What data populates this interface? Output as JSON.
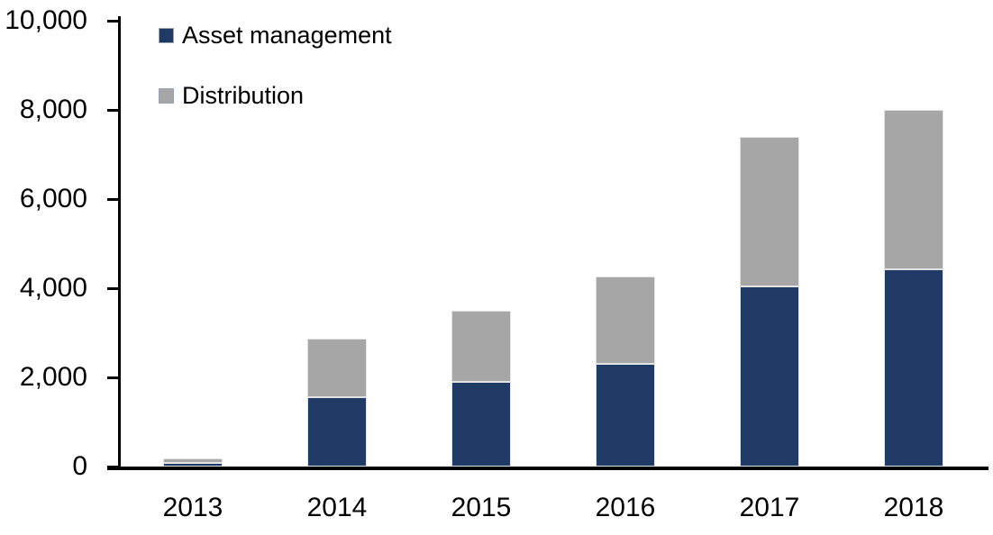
{
  "chart_data": {
    "type": "bar",
    "stacked": true,
    "title": "",
    "xlabel": "",
    "ylabel": "",
    "categories": [
      "2013",
      "2014",
      "2015",
      "2016",
      "2017",
      "2018"
    ],
    "series": [
      {
        "name": "Asset management",
        "color": "#1f3a64",
        "values": [
          90,
          1550,
          1900,
          2300,
          4050,
          4430
        ]
      },
      {
        "name": "Distribution",
        "color": "#a6a6a6",
        "values": [
          110,
          1320,
          1600,
          1950,
          3350,
          3570
        ]
      }
    ],
    "totals": [
      200,
      2870,
      3500,
      4250,
      7400,
      8000
    ],
    "ylim": [
      0,
      10000
    ],
    "y_ticks": [
      0,
      2000,
      4000,
      6000,
      8000,
      10000
    ],
    "y_tick_labels": [
      "0",
      "2,000",
      "4,000",
      "6,000",
      "8,000",
      "10,000"
    ],
    "grid": false,
    "legend_position": "top-left",
    "axis_color": "#000000",
    "background_color": "#ffffff"
  }
}
